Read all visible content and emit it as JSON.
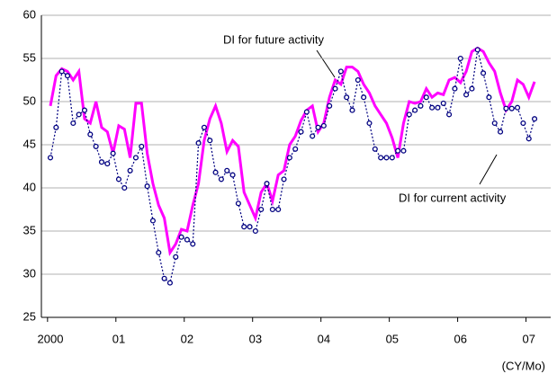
{
  "chart_data": {
    "type": "line",
    "categories": [
      "2000",
      null,
      null,
      null,
      null,
      null,
      null,
      null,
      null,
      null,
      null,
      null,
      "01",
      null,
      null,
      null,
      null,
      null,
      null,
      null,
      null,
      null,
      null,
      null,
      "02",
      null,
      null,
      null,
      null,
      null,
      null,
      null,
      null,
      null,
      null,
      null,
      "03",
      null,
      null,
      null,
      null,
      null,
      null,
      null,
      null,
      null,
      null,
      null,
      "04",
      null,
      null,
      null,
      null,
      null,
      null,
      null,
      null,
      null,
      null,
      null,
      "05",
      null,
      null,
      null,
      null,
      null,
      null,
      null,
      null,
      null,
      null,
      null,
      "06",
      null,
      null,
      null,
      null,
      null,
      null,
      null,
      null,
      null,
      null,
      null,
      "07",
      null
    ],
    "x_label": "(CY/Mo)",
    "series": [
      {
        "name": "DI for future activity",
        "color": "#ff00ff",
        "style": "solid",
        "values": [
          49.5,
          53,
          53.8,
          53.5,
          52.5,
          53.5,
          48,
          47.5,
          50,
          47,
          46.5,
          44,
          47.2,
          46.8,
          43.5,
          49.8,
          49.8,
          44,
          40.5,
          38,
          36.5,
          32.5,
          33.5,
          35.2,
          35,
          38,
          40.5,
          45.5,
          48,
          49.5,
          47.5,
          44.2,
          45.5,
          44.8,
          39.5,
          38,
          36.5,
          39.5,
          40.5,
          38.5,
          41.5,
          42,
          45,
          46,
          47.8,
          49,
          49.5,
          46.5,
          47.5,
          50.5,
          52.5,
          52,
          54,
          54,
          53.5,
          52,
          51,
          49.5,
          48.5,
          47.5,
          45.8,
          43.5,
          47.5,
          50,
          49.8,
          50,
          51.5,
          50.5,
          51,
          50.8,
          52.5,
          52.8,
          52.2,
          53.5,
          55.8,
          56.2,
          55.8,
          54.5,
          53.5,
          51,
          49,
          50,
          52.5,
          52,
          50.5,
          52.3
        ]
      },
      {
        "name": "DI for current activity",
        "color": "#000080",
        "style": "dotted",
        "values": [
          43.5,
          47,
          53.5,
          53,
          47.5,
          48.5,
          49,
          46.2,
          44.8,
          43,
          42.8,
          44,
          41,
          40,
          42,
          43.5,
          44.8,
          40.2,
          36.2,
          32.5,
          29.5,
          29,
          32,
          34.3,
          34,
          33.5,
          45.2,
          47,
          45.5,
          41.8,
          41,
          42,
          41.5,
          38.2,
          35.5,
          35.5,
          35,
          37.5,
          40.5,
          37.5,
          37.5,
          41,
          43.5,
          44.5,
          46.5,
          48.8,
          46,
          47,
          47.2,
          49.5,
          51.5,
          53.5,
          50.5,
          49,
          52.5,
          50.5,
          47.5,
          44.5,
          43.5,
          43.5,
          43.5,
          44.3,
          44.3,
          48.5,
          49,
          49.5,
          50.5,
          49.3,
          49.3,
          49.8,
          48.5,
          51.5,
          55,
          50.8,
          51.5,
          56,
          53.3,
          50.5,
          47.5,
          46.5,
          49.2,
          49.2,
          49.3,
          47.5,
          45.7,
          48
        ]
      }
    ],
    "ylim": [
      25,
      60
    ],
    "yticks": [
      25,
      30,
      35,
      40,
      45,
      50,
      55,
      60
    ],
    "grid": true
  }
}
